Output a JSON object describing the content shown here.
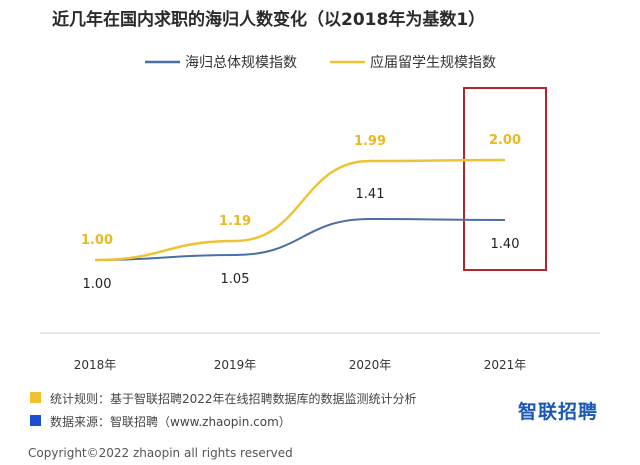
{
  "chart_data": {
    "type": "line",
    "title": "近几年在国内求职的海归人数变化（以2018年为基数1）",
    "categories": [
      "2018年",
      "2019年",
      "2020年",
      "2021年"
    ],
    "series": [
      {
        "name": "海归总体规模指数",
        "values": [
          1.0,
          1.05,
          1.41,
          1.4
        ],
        "color": "#4a6fa5",
        "labels": [
          "1.00",
          "1.05",
          "1.41",
          "1.40"
        ]
      },
      {
        "name": "应届留学生规模指数",
        "values": [
          1.0,
          1.19,
          1.99,
          2.0
        ],
        "color": "#f0c232",
        "labels": [
          "1.00",
          "1.19",
          "1.99",
          "2.00"
        ]
      }
    ],
    "ylim": [
      0.2,
      2.4
    ],
    "highlight": {
      "category": "2021年",
      "color": "#b5242a"
    },
    "grid": false,
    "legend_position": "top"
  },
  "footer": {
    "notes": [
      {
        "text": "统计规则：基于智联招聘2022年在线招聘数据库的数据监测统计分析",
        "color": "#f0c232"
      },
      {
        "text": "数据来源：智联招聘（www.zhaopin.com）",
        "color": "#1b4fcf"
      }
    ],
    "brand": "智联招聘",
    "copyright": "Copyright©2022 zhaopin all rights reserved"
  }
}
